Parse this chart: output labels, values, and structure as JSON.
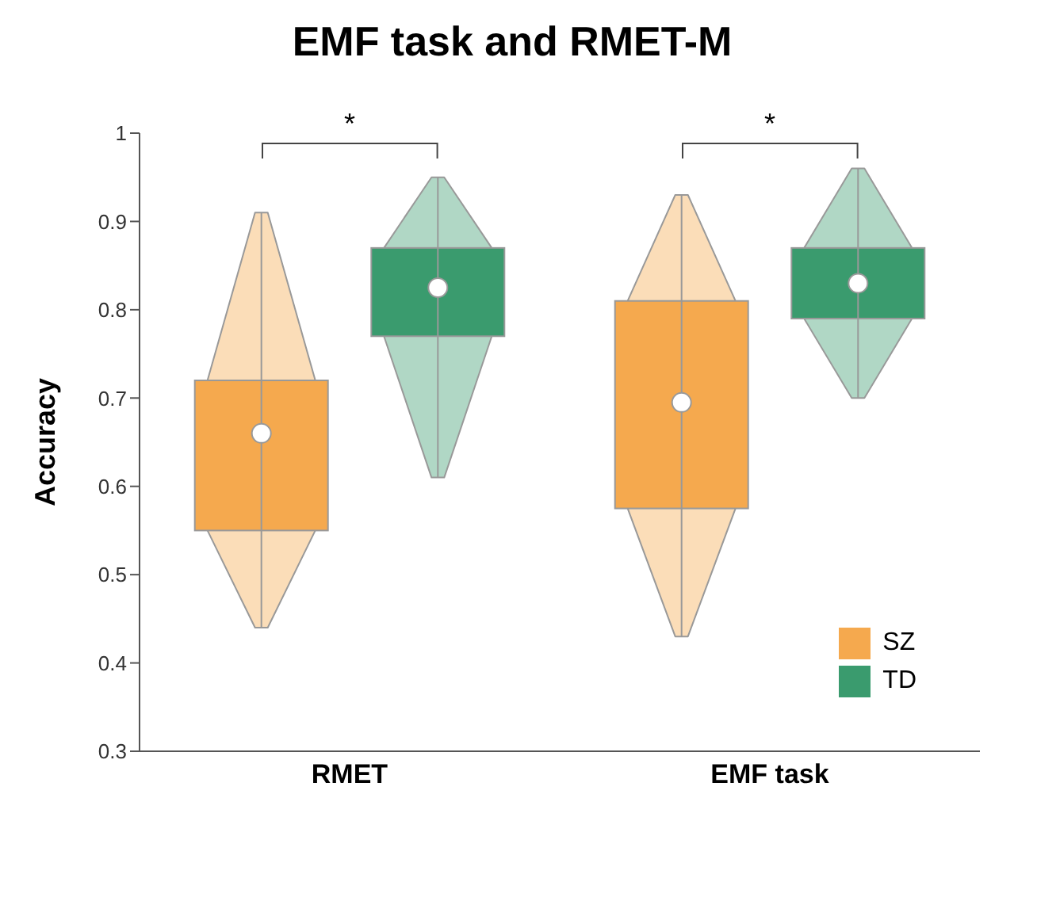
{
  "chart_data": {
    "type": "box",
    "title": "EMF task and RMET-M",
    "ylabel": "Accuracy",
    "categories": [
      "RMET",
      "EMF task"
    ],
    "series": [
      {
        "name": "SZ",
        "color": "#f5a94e",
        "boxes": [
          {
            "low": 0.44,
            "q1": 0.55,
            "median": 0.66,
            "q3": 0.72,
            "high": 0.91
          },
          {
            "low": 0.43,
            "q1": 0.575,
            "median": 0.695,
            "q3": 0.81,
            "high": 0.93
          }
        ]
      },
      {
        "name": "TD",
        "color": "#3a9b6e",
        "boxes": [
          {
            "low": 0.61,
            "q1": 0.77,
            "median": 0.825,
            "q3": 0.87,
            "high": 0.95
          },
          {
            "low": 0.7,
            "q1": 0.79,
            "median": 0.83,
            "q3": 0.87,
            "high": 0.96
          }
        ]
      }
    ],
    "ylim": [
      0.3,
      1
    ],
    "yticks": [
      0.3,
      0.4,
      0.5,
      0.6,
      0.7,
      0.8,
      0.9,
      1
    ],
    "grid": false,
    "legend": "bottom right",
    "annotations": [
      "*",
      "*"
    ]
  }
}
